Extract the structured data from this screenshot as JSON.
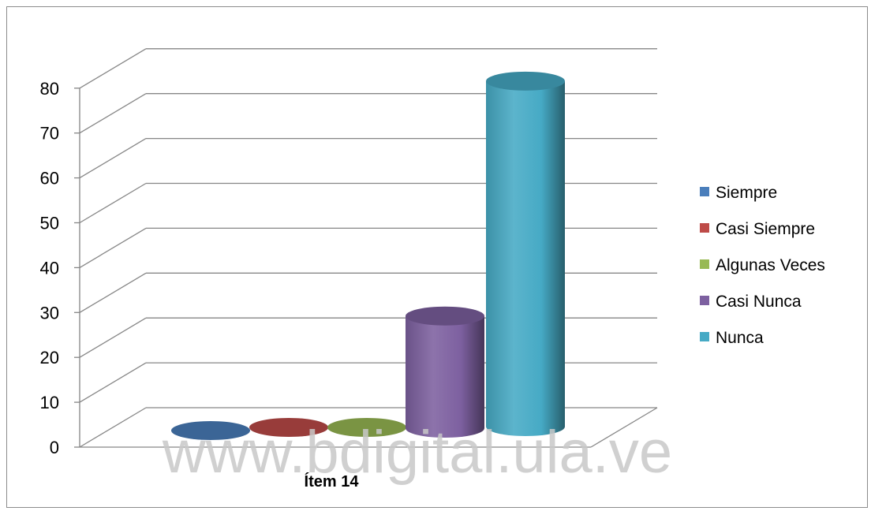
{
  "chart_data": {
    "type": "bar",
    "style": "3d-cylinder",
    "categories": [
      "Ítem 14"
    ],
    "series": [
      {
        "name": "Siempre",
        "values": [
          0
        ],
        "color": "#4a7ebb"
      },
      {
        "name": "Casi Siempre",
        "values": [
          0
        ],
        "color": "#be4b48"
      },
      {
        "name": "Algunas Veces",
        "values": [
          0
        ],
        "color": "#98b954"
      },
      {
        "name": "Casi Nunca",
        "values": [
          25
        ],
        "color": "#7d60a0"
      },
      {
        "name": "Nunca",
        "values": [
          77
        ],
        "color": "#46aac5"
      }
    ],
    "yticks": [
      "0",
      "10",
      "20",
      "30",
      "40",
      "50",
      "60",
      "70",
      "80"
    ],
    "ylim": [
      0,
      80
    ],
    "grid": true,
    "legend_position": "right",
    "watermark": "www.bdigital.ula.ve"
  }
}
